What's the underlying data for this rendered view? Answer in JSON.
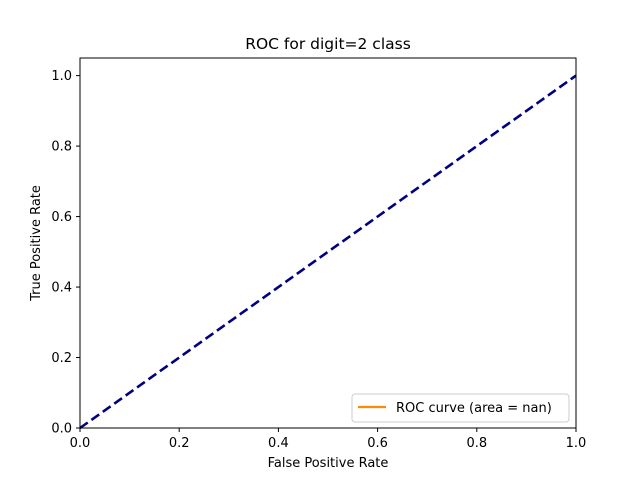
{
  "chart_data": {
    "type": "line",
    "title": "ROC for digit=2 class",
    "xlabel": "False Positive Rate",
    "ylabel": "True Positive Rate",
    "xlim": [
      0.0,
      1.0
    ],
    "ylim": [
      0.0,
      1.05
    ],
    "xticks": [
      0.0,
      0.2,
      0.4,
      0.6,
      0.8,
      1.0
    ],
    "xtick_labels": [
      "0.0",
      "0.2",
      "0.4",
      "0.6",
      "0.8",
      "1.0"
    ],
    "yticks": [
      0.0,
      0.2,
      0.4,
      0.6,
      0.8,
      1.0
    ],
    "ytick_labels": [
      "0.0",
      "0.2",
      "0.4",
      "0.6",
      "0.8",
      "1.0"
    ],
    "grid": false,
    "legend_position": "lower-right",
    "series": [
      {
        "name": "ROC curve (area = nan)",
        "color": "#ff8c00",
        "style": "solid",
        "x": [],
        "y": []
      },
      {
        "color": "#000080",
        "style": "dashed",
        "x": [
          0,
          1
        ],
        "y": [
          0,
          1
        ]
      }
    ]
  }
}
